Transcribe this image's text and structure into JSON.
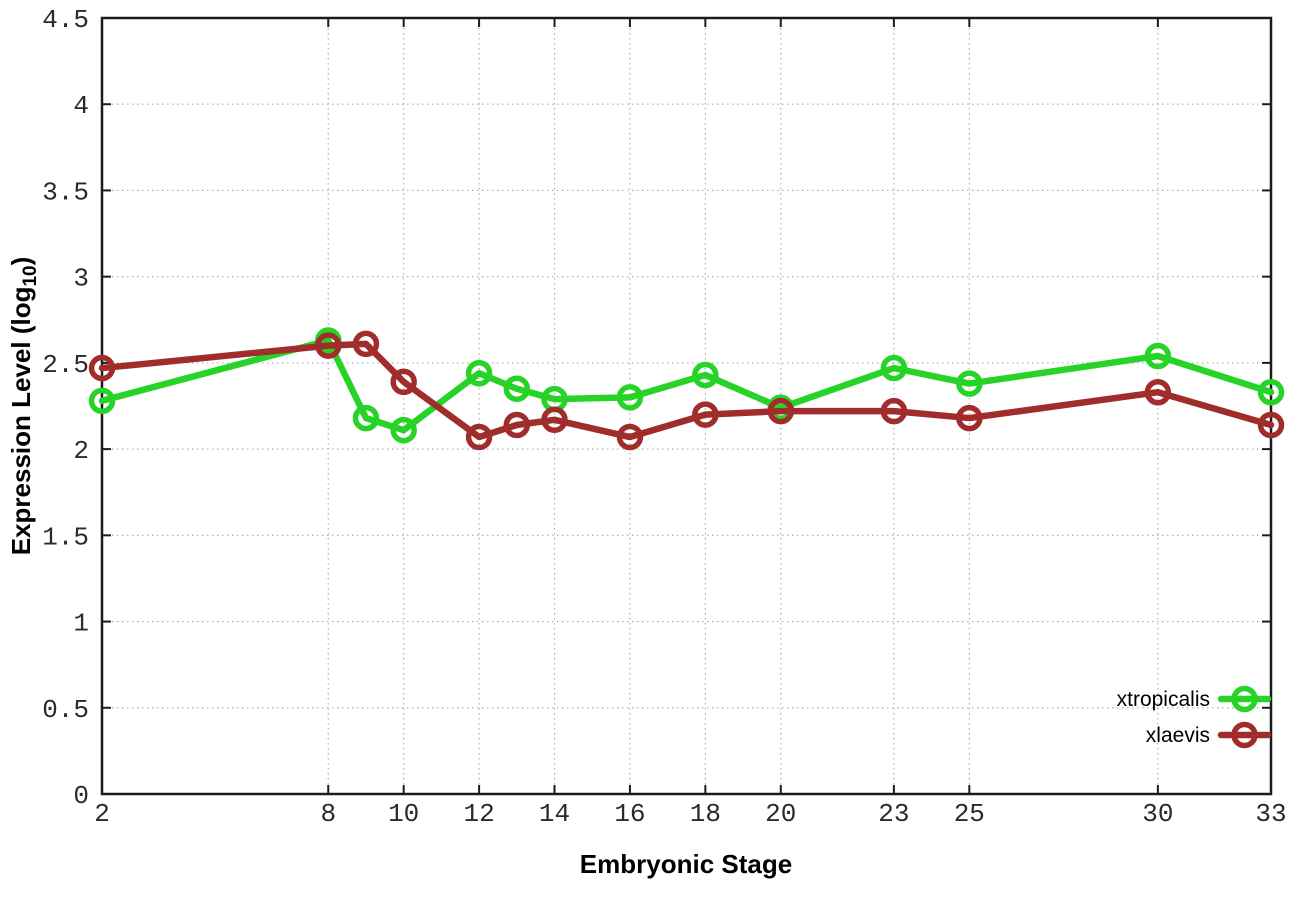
{
  "chart_data": {
    "type": "line",
    "title": "",
    "xlabel": "Embryonic Stage",
    "ylabel_prefix": "Expression Level (log",
    "ylabel_sub": "10",
    "ylabel_suffix": ")",
    "x": [
      2,
      8,
      9,
      10,
      12,
      13,
      14,
      16,
      18,
      20,
      23,
      25,
      30,
      33
    ],
    "series": [
      {
        "name": "xtropicalis",
        "color": "#26d326",
        "values": [
          2.28,
          2.63,
          2.18,
          2.11,
          2.44,
          2.35,
          2.29,
          2.3,
          2.43,
          2.24,
          2.47,
          2.38,
          2.54,
          2.33
        ]
      },
      {
        "name": "xlaevis",
        "color": "#a02c2c",
        "values": [
          2.47,
          2.6,
          2.61,
          2.39,
          2.07,
          2.14,
          2.17,
          2.07,
          2.2,
          2.22,
          2.22,
          2.18,
          2.33,
          2.14
        ]
      }
    ],
    "xlim": [
      2,
      33
    ],
    "ylim": [
      0,
      4.5
    ],
    "xticks": {
      "values": [
        2,
        8,
        10,
        12,
        14,
        16,
        18,
        20,
        23,
        25,
        30,
        33
      ],
      "labels": [
        "2",
        "8",
        "10",
        "12",
        "14",
        "16",
        "18",
        "20",
        "23",
        "25",
        "30",
        "33"
      ]
    },
    "yticks": {
      "values": [
        0,
        0.5,
        1,
        1.5,
        2,
        2.5,
        3,
        3.5,
        4,
        4.5
      ],
      "labels": [
        "0",
        "0.5",
        "1",
        "1.5",
        "2",
        "2.5",
        "3",
        "3.5",
        "4",
        "4.5"
      ]
    },
    "grid": true,
    "legend_position": "inside-bottom-right",
    "colors": {
      "axis_border": "#1c1c1c",
      "grid": "#aaaaaa",
      "tick_label": "#2b2b2b",
      "axis_label": "#000000",
      "background": "#ffffff"
    }
  }
}
